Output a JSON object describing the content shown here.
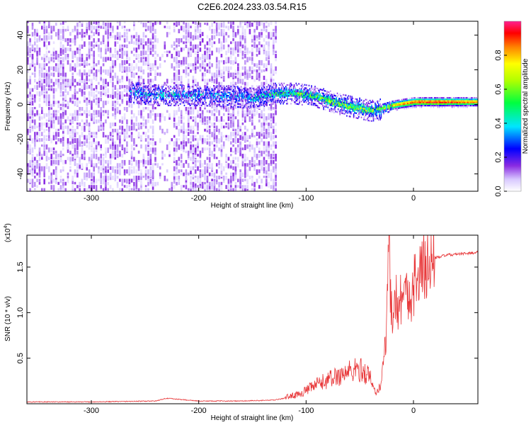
{
  "title": "C2E6.2024.233.03.54.R15",
  "chart_data": [
    {
      "type": "heatmap",
      "xlabel": "Height of straight line (km)",
      "ylabel": "Frequency (Hz)",
      "xlim": [
        -360,
        60
      ],
      "ylim": [
        -50,
        48
      ],
      "x_ticks": [
        -300,
        -200,
        -100,
        0
      ],
      "x_tick_labels": [
        "-300",
        "-200",
        "-100",
        "0"
      ],
      "y_ticks": [
        -40,
        -20,
        0,
        20,
        40
      ],
      "y_tick_labels": [
        "-40",
        "-20",
        "0",
        "20",
        "40"
      ],
      "colorbar": {
        "label": "Normalized spectral amplitude",
        "range": [
          0.0,
          1.0
        ],
        "ticks": [
          0.0,
          0.2,
          0.4,
          0.6,
          0.8
        ],
        "tick_labels": [
          "0.0",
          "0.2",
          "0.4",
          "0.6",
          "0.8"
        ]
      },
      "noise_region": {
        "x_range": [
          -360,
          -128
        ],
        "amplitude": 0.1
      },
      "signal_ridge": {
        "x": [
          -265,
          -240,
          -200,
          -160,
          -150,
          -130,
          -110,
          -90,
          -70,
          -55,
          -40,
          -30,
          -20,
          -10,
          0,
          20,
          40,
          60
        ],
        "frequency": [
          7,
          5,
          5,
          4,
          3,
          6,
          6,
          4,
          0,
          -2,
          -4,
          -3,
          -1,
          0,
          1,
          1,
          1,
          1
        ],
        "amplitude": [
          0.2,
          0.3,
          0.25,
          0.2,
          0.3,
          0.4,
          0.45,
          0.5,
          0.55,
          0.6,
          0.5,
          0.55,
          0.75,
          0.85,
          0.9,
          0.95,
          0.9,
          0.85
        ]
      }
    },
    {
      "type": "line",
      "xlabel": "Height of straight line (km)",
      "ylabel": "SNR (10 * v/v)",
      "scale_label": "(x10",
      "scale_exponent": "4",
      "scale_suffix": ")",
      "xlim": [
        -360,
        60
      ],
      "ylim": [
        0,
        1.85
      ],
      "x_ticks": [
        -300,
        -200,
        -100,
        0
      ],
      "x_tick_labels": [
        "-300",
        "-200",
        "-100",
        "0"
      ],
      "y_ticks": [
        0.5,
        1.0,
        1.5
      ],
      "y_tick_labels": [
        "0.5",
        "1.0",
        "1.5"
      ],
      "color": "#e8383a",
      "series": [
        {
          "x": [
            -360,
            -300,
            -240,
            -230,
            -200,
            -160,
            -130,
            -110,
            -100,
            -90,
            -80,
            -70,
            -60,
            -50,
            -40,
            -35,
            -30,
            -28,
            -25,
            -23,
            -20,
            -18,
            -15,
            -10,
            -5,
            0,
            10,
            20,
            30,
            40,
            50,
            60
          ],
          "values": [
            0.02,
            0.02,
            0.03,
            0.06,
            0.03,
            0.03,
            0.04,
            0.08,
            0.12,
            0.18,
            0.22,
            0.26,
            0.3,
            0.32,
            0.25,
            0.12,
            0.2,
            0.5,
            0.8,
            1.75,
            0.9,
            1.3,
            1.05,
            1.25,
            1.15,
            1.3,
            1.5,
            1.6,
            1.63,
            1.64,
            1.65,
            1.66
          ]
        }
      ]
    }
  ]
}
